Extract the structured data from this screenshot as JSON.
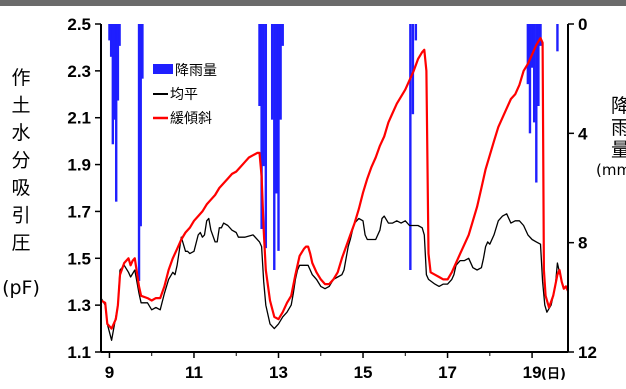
{
  "chart_data": {
    "type": "line",
    "x_unit": "(日)",
    "xlim": [
      8.8,
      19.85
    ],
    "x_ticks": [
      "9",
      "11",
      "13",
      "15",
      "17",
      "19"
    ],
    "y_left": {
      "label_chars": [
        "作",
        "土",
        "水",
        "分",
        "吸",
        "引",
        "圧"
      ],
      "unit": "(pF)",
      "ylim": [
        1.1,
        2.5
      ],
      "ticks": [
        "2.5",
        "2.3",
        "2.1",
        "1.9",
        "1.7",
        "1.5",
        "1.3",
        "1.1"
      ]
    },
    "y_right": {
      "label_chars": [
        "降",
        "雨",
        "量"
      ],
      "unit": "(mm/",
      "ylim": [
        0,
        12
      ],
      "inverted": true,
      "ticks": [
        "0",
        "4",
        "8",
        "12"
      ]
    },
    "legend": [
      {
        "label": "降雨量",
        "color": "#1f1fff",
        "kind": "bar"
      },
      {
        "label": "均平",
        "color": "#000000",
        "kind": "line"
      },
      {
        "label": "緩傾斜",
        "color": "#ff0000",
        "kind": "line"
      }
    ],
    "rain_bars": [
      [
        9.0,
        0.6
      ],
      [
        9.04,
        1.2
      ],
      [
        9.08,
        4.4
      ],
      [
        9.12,
        3.5
      ],
      [
        9.16,
        6.5
      ],
      [
        9.2,
        2.8
      ],
      [
        9.24,
        0.8
      ],
      [
        9.7,
        9.4
      ],
      [
        9.74,
        7.4
      ],
      [
        9.78,
        2.0
      ],
      [
        12.55,
        3.0
      ],
      [
        12.6,
        7.5
      ],
      [
        12.65,
        5.2
      ],
      [
        12.7,
        8.2
      ],
      [
        12.85,
        3.5
      ],
      [
        12.9,
        9.0
      ],
      [
        12.95,
        6.2
      ],
      [
        13.0,
        8.3
      ],
      [
        13.05,
        3.5
      ],
      [
        13.1,
        0.8
      ],
      [
        16.12,
        9.0
      ],
      [
        16.18,
        3.3
      ],
      [
        16.25,
        0.6
      ],
      [
        18.9,
        2.2
      ],
      [
        18.95,
        4.0
      ],
      [
        19.0,
        1.6
      ],
      [
        19.05,
        3.6
      ],
      [
        19.1,
        5.8
      ],
      [
        19.15,
        3.0
      ],
      [
        19.2,
        0.8
      ],
      [
        19.6,
        1.0
      ]
    ],
    "series": [
      {
        "name": "均平",
        "color": "#000000",
        "points": [
          [
            8.8,
            1.33
          ],
          [
            8.9,
            1.3
          ],
          [
            8.95,
            1.22
          ],
          [
            9.05,
            1.15
          ],
          [
            9.15,
            1.25
          ],
          [
            9.2,
            1.3
          ],
          [
            9.25,
            1.45
          ],
          [
            9.35,
            1.47
          ],
          [
            9.45,
            1.44
          ],
          [
            9.5,
            1.42
          ],
          [
            9.6,
            1.45
          ],
          [
            9.7,
            1.35
          ],
          [
            9.75,
            1.31
          ],
          [
            9.9,
            1.31
          ],
          [
            10.0,
            1.28
          ],
          [
            10.1,
            1.29
          ],
          [
            10.2,
            1.28
          ],
          [
            10.3,
            1.35
          ],
          [
            10.4,
            1.41
          ],
          [
            10.5,
            1.44
          ],
          [
            10.55,
            1.43
          ],
          [
            10.6,
            1.47
          ],
          [
            10.65,
            1.53
          ],
          [
            10.7,
            1.59
          ],
          [
            10.75,
            1.56
          ],
          [
            10.8,
            1.53
          ],
          [
            10.85,
            1.53
          ],
          [
            10.9,
            1.52
          ],
          [
            11.0,
            1.53
          ],
          [
            11.1,
            1.6
          ],
          [
            11.15,
            1.61
          ],
          [
            11.2,
            1.59
          ],
          [
            11.25,
            1.6
          ],
          [
            11.3,
            1.66
          ],
          [
            11.35,
            1.67
          ],
          [
            11.4,
            1.62
          ],
          [
            11.5,
            1.57
          ],
          [
            11.55,
            1.57
          ],
          [
            11.6,
            1.63
          ],
          [
            11.65,
            1.63
          ],
          [
            11.7,
            1.65
          ],
          [
            11.8,
            1.64
          ],
          [
            11.9,
            1.62
          ],
          [
            12.0,
            1.61
          ],
          [
            12.05,
            1.59
          ],
          [
            12.2,
            1.59
          ],
          [
            12.4,
            1.6
          ],
          [
            12.55,
            1.57
          ],
          [
            12.6,
            1.55
          ],
          [
            12.65,
            1.4
          ],
          [
            12.7,
            1.3
          ],
          [
            12.8,
            1.22
          ],
          [
            12.9,
            1.2
          ],
          [
            13.0,
            1.22
          ],
          [
            13.1,
            1.25
          ],
          [
            13.2,
            1.27
          ],
          [
            13.3,
            1.3
          ],
          [
            13.35,
            1.35
          ],
          [
            13.4,
            1.41
          ],
          [
            13.45,
            1.45
          ],
          [
            13.5,
            1.47
          ],
          [
            13.6,
            1.47
          ],
          [
            13.7,
            1.47
          ],
          [
            13.75,
            1.45
          ],
          [
            13.8,
            1.43
          ],
          [
            13.85,
            1.42
          ],
          [
            13.9,
            1.41
          ],
          [
            14.0,
            1.38
          ],
          [
            14.1,
            1.37
          ],
          [
            14.2,
            1.38
          ],
          [
            14.3,
            1.41
          ],
          [
            14.4,
            1.42
          ],
          [
            14.5,
            1.43
          ],
          [
            14.55,
            1.45
          ],
          [
            14.6,
            1.5
          ],
          [
            14.65,
            1.55
          ],
          [
            14.7,
            1.58
          ],
          [
            14.75,
            1.62
          ],
          [
            14.8,
            1.65
          ],
          [
            14.85,
            1.66
          ],
          [
            14.9,
            1.67
          ],
          [
            15.0,
            1.66
          ],
          [
            15.05,
            1.6
          ],
          [
            15.1,
            1.58
          ],
          [
            15.2,
            1.58
          ],
          [
            15.3,
            1.58
          ],
          [
            15.4,
            1.62
          ],
          [
            15.45,
            1.67
          ],
          [
            15.5,
            1.68
          ],
          [
            15.6,
            1.65
          ],
          [
            15.7,
            1.65
          ],
          [
            15.8,
            1.66
          ],
          [
            15.9,
            1.65
          ],
          [
            16.0,
            1.66
          ],
          [
            16.1,
            1.64
          ],
          [
            16.2,
            1.64
          ],
          [
            16.3,
            1.64
          ],
          [
            16.4,
            1.63
          ],
          [
            16.45,
            1.6
          ],
          [
            16.5,
            1.43
          ],
          [
            16.55,
            1.41
          ],
          [
            16.7,
            1.39
          ],
          [
            16.8,
            1.38
          ],
          [
            16.9,
            1.39
          ],
          [
            17.0,
            1.39
          ],
          [
            17.1,
            1.41
          ],
          [
            17.15,
            1.43
          ],
          [
            17.2,
            1.47
          ],
          [
            17.3,
            1.49
          ],
          [
            17.4,
            1.49
          ],
          [
            17.5,
            1.5
          ],
          [
            17.6,
            1.46
          ],
          [
            17.7,
            1.45
          ],
          [
            17.8,
            1.46
          ],
          [
            17.85,
            1.5
          ],
          [
            17.9,
            1.55
          ],
          [
            17.95,
            1.57
          ],
          [
            18.0,
            1.56
          ],
          [
            18.1,
            1.6
          ],
          [
            18.2,
            1.66
          ],
          [
            18.3,
            1.68
          ],
          [
            18.4,
            1.69
          ],
          [
            18.5,
            1.65
          ],
          [
            18.6,
            1.66
          ],
          [
            18.7,
            1.66
          ],
          [
            18.8,
            1.64
          ],
          [
            18.9,
            1.6
          ],
          [
            19.0,
            1.58
          ],
          [
            19.1,
            1.57
          ],
          [
            19.2,
            1.56
          ],
          [
            19.25,
            1.4
          ],
          [
            19.3,
            1.3
          ],
          [
            19.35,
            1.27
          ],
          [
            19.45,
            1.3
          ],
          [
            19.55,
            1.38
          ],
          [
            19.6,
            1.48
          ],
          [
            19.65,
            1.44
          ],
          [
            19.7,
            1.4
          ],
          [
            19.75,
            1.37
          ],
          [
            19.8,
            1.38
          ],
          [
            19.85,
            1.38
          ]
        ]
      },
      {
        "name": "緩傾斜",
        "color": "#ff0000",
        "points": [
          [
            8.8,
            1.32
          ],
          [
            8.9,
            1.31
          ],
          [
            8.95,
            1.22
          ],
          [
            9.05,
            1.2
          ],
          [
            9.15,
            1.24
          ],
          [
            9.2,
            1.3
          ],
          [
            9.25,
            1.43
          ],
          [
            9.35,
            1.48
          ],
          [
            9.45,
            1.5
          ],
          [
            9.5,
            1.47
          ],
          [
            9.55,
            1.49
          ],
          [
            9.6,
            1.5
          ],
          [
            9.7,
            1.38
          ],
          [
            9.75,
            1.34
          ],
          [
            9.9,
            1.33
          ],
          [
            10.0,
            1.32
          ],
          [
            10.1,
            1.33
          ],
          [
            10.2,
            1.33
          ],
          [
            10.3,
            1.38
          ],
          [
            10.4,
            1.45
          ],
          [
            10.5,
            1.5
          ],
          [
            10.6,
            1.54
          ],
          [
            10.7,
            1.58
          ],
          [
            10.8,
            1.61
          ],
          [
            10.9,
            1.63
          ],
          [
            11.0,
            1.66
          ],
          [
            11.1,
            1.68
          ],
          [
            11.2,
            1.7
          ],
          [
            11.3,
            1.73
          ],
          [
            11.4,
            1.75
          ],
          [
            11.5,
            1.77
          ],
          [
            11.6,
            1.8
          ],
          [
            11.7,
            1.82
          ],
          [
            11.8,
            1.84
          ],
          [
            11.9,
            1.86
          ],
          [
            12.0,
            1.87
          ],
          [
            12.1,
            1.89
          ],
          [
            12.2,
            1.91
          ],
          [
            12.3,
            1.93
          ],
          [
            12.4,
            1.94
          ],
          [
            12.5,
            1.95
          ],
          [
            12.55,
            1.95
          ],
          [
            12.6,
            1.85
          ],
          [
            12.65,
            1.62
          ],
          [
            12.7,
            1.45
          ],
          [
            12.8,
            1.32
          ],
          [
            12.9,
            1.25
          ],
          [
            13.0,
            1.24
          ],
          [
            13.1,
            1.27
          ],
          [
            13.2,
            1.31
          ],
          [
            13.3,
            1.34
          ],
          [
            13.4,
            1.43
          ],
          [
            13.5,
            1.51
          ],
          [
            13.6,
            1.54
          ],
          [
            13.65,
            1.55
          ],
          [
            13.7,
            1.55
          ],
          [
            13.75,
            1.52
          ],
          [
            13.8,
            1.48
          ],
          [
            13.9,
            1.44
          ],
          [
            14.0,
            1.41
          ],
          [
            14.1,
            1.39
          ],
          [
            14.2,
            1.39
          ],
          [
            14.3,
            1.41
          ],
          [
            14.4,
            1.44
          ],
          [
            14.5,
            1.5
          ],
          [
            14.6,
            1.55
          ],
          [
            14.7,
            1.6
          ],
          [
            14.8,
            1.65
          ],
          [
            14.9,
            1.71
          ],
          [
            15.0,
            1.78
          ],
          [
            15.1,
            1.84
          ],
          [
            15.2,
            1.89
          ],
          [
            15.3,
            1.93
          ],
          [
            15.4,
            1.98
          ],
          [
            15.5,
            2.02
          ],
          [
            15.6,
            2.08
          ],
          [
            15.7,
            2.12
          ],
          [
            15.8,
            2.16
          ],
          [
            15.9,
            2.19
          ],
          [
            16.0,
            2.22
          ],
          [
            16.1,
            2.26
          ],
          [
            16.2,
            2.3
          ],
          [
            16.3,
            2.35
          ],
          [
            16.4,
            2.38
          ],
          [
            16.45,
            2.39
          ],
          [
            16.5,
            2.3
          ],
          [
            16.55,
            1.52
          ],
          [
            16.6,
            1.44
          ],
          [
            16.7,
            1.43
          ],
          [
            16.8,
            1.42
          ],
          [
            16.9,
            1.41
          ],
          [
            17.0,
            1.41
          ],
          [
            17.1,
            1.44
          ],
          [
            17.2,
            1.48
          ],
          [
            17.3,
            1.52
          ],
          [
            17.4,
            1.56
          ],
          [
            17.5,
            1.6
          ],
          [
            17.6,
            1.66
          ],
          [
            17.7,
            1.72
          ],
          [
            17.8,
            1.8
          ],
          [
            17.9,
            1.88
          ],
          [
            18.0,
            1.94
          ],
          [
            18.1,
            2.0
          ],
          [
            18.2,
            2.06
          ],
          [
            18.3,
            2.1
          ],
          [
            18.4,
            2.14
          ],
          [
            18.5,
            2.18
          ],
          [
            18.6,
            2.2
          ],
          [
            18.7,
            2.24
          ],
          [
            18.8,
            2.3
          ],
          [
            18.9,
            2.33
          ],
          [
            19.0,
            2.37
          ],
          [
            19.1,
            2.41
          ],
          [
            19.2,
            2.44
          ],
          [
            19.25,
            2.42
          ],
          [
            19.28,
            1.45
          ],
          [
            19.32,
            1.34
          ],
          [
            19.4,
            1.29
          ],
          [
            19.5,
            1.34
          ],
          [
            19.6,
            1.43
          ],
          [
            19.65,
            1.45
          ],
          [
            19.7,
            1.4
          ],
          [
            19.75,
            1.37
          ],
          [
            19.8,
            1.38
          ],
          [
            19.85,
            1.36
          ]
        ]
      }
    ]
  }
}
